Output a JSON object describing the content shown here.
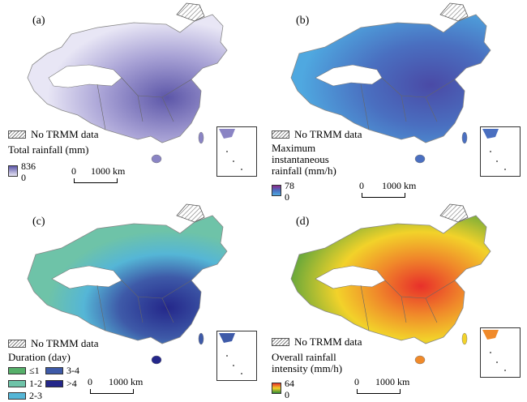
{
  "nodata_label": "No TRMM data",
  "scale_label_zero": "0",
  "scale_label_km": "1000 km",
  "panels": [
    {
      "label": "(a)",
      "legend_title": "Total rainfall (mm)",
      "max": "836",
      "min": "0",
      "colors": {
        "low": "#e8e6f5",
        "mid": "#a9a3d6",
        "high": "#5c56a8"
      }
    },
    {
      "label": "(b)",
      "legend_title_lines": [
        "Maximum",
        "instantaneous",
        "rainfall (mm/h)"
      ],
      "max": "78",
      "min": "0",
      "colors": {
        "low": "#4fa8e0",
        "mid": "#4a6fc0",
        "high": "#5a3a9a"
      }
    },
    {
      "label": "(c)",
      "legend_title": "Duration (day)",
      "categories": [
        {
          "label": "≤1",
          "color": "#56b06a"
        },
        {
          "label": "1-2",
          "color": "#6ec3a8"
        },
        {
          "label": "2-3",
          "color": "#55b6d6"
        },
        {
          "label": "3-4",
          "color": "#3e5aa8"
        },
        {
          "label": ">4",
          "color": "#24278a"
        }
      ]
    },
    {
      "label": "(d)",
      "legend_title_lines": [
        "Overall rainfall",
        "intensity (mm/h)"
      ],
      "max": "64",
      "min": "0",
      "colors": {
        "low": "#2f8a36",
        "mid": "#f2d22a",
        "high": "#e8302a"
      }
    }
  ]
}
